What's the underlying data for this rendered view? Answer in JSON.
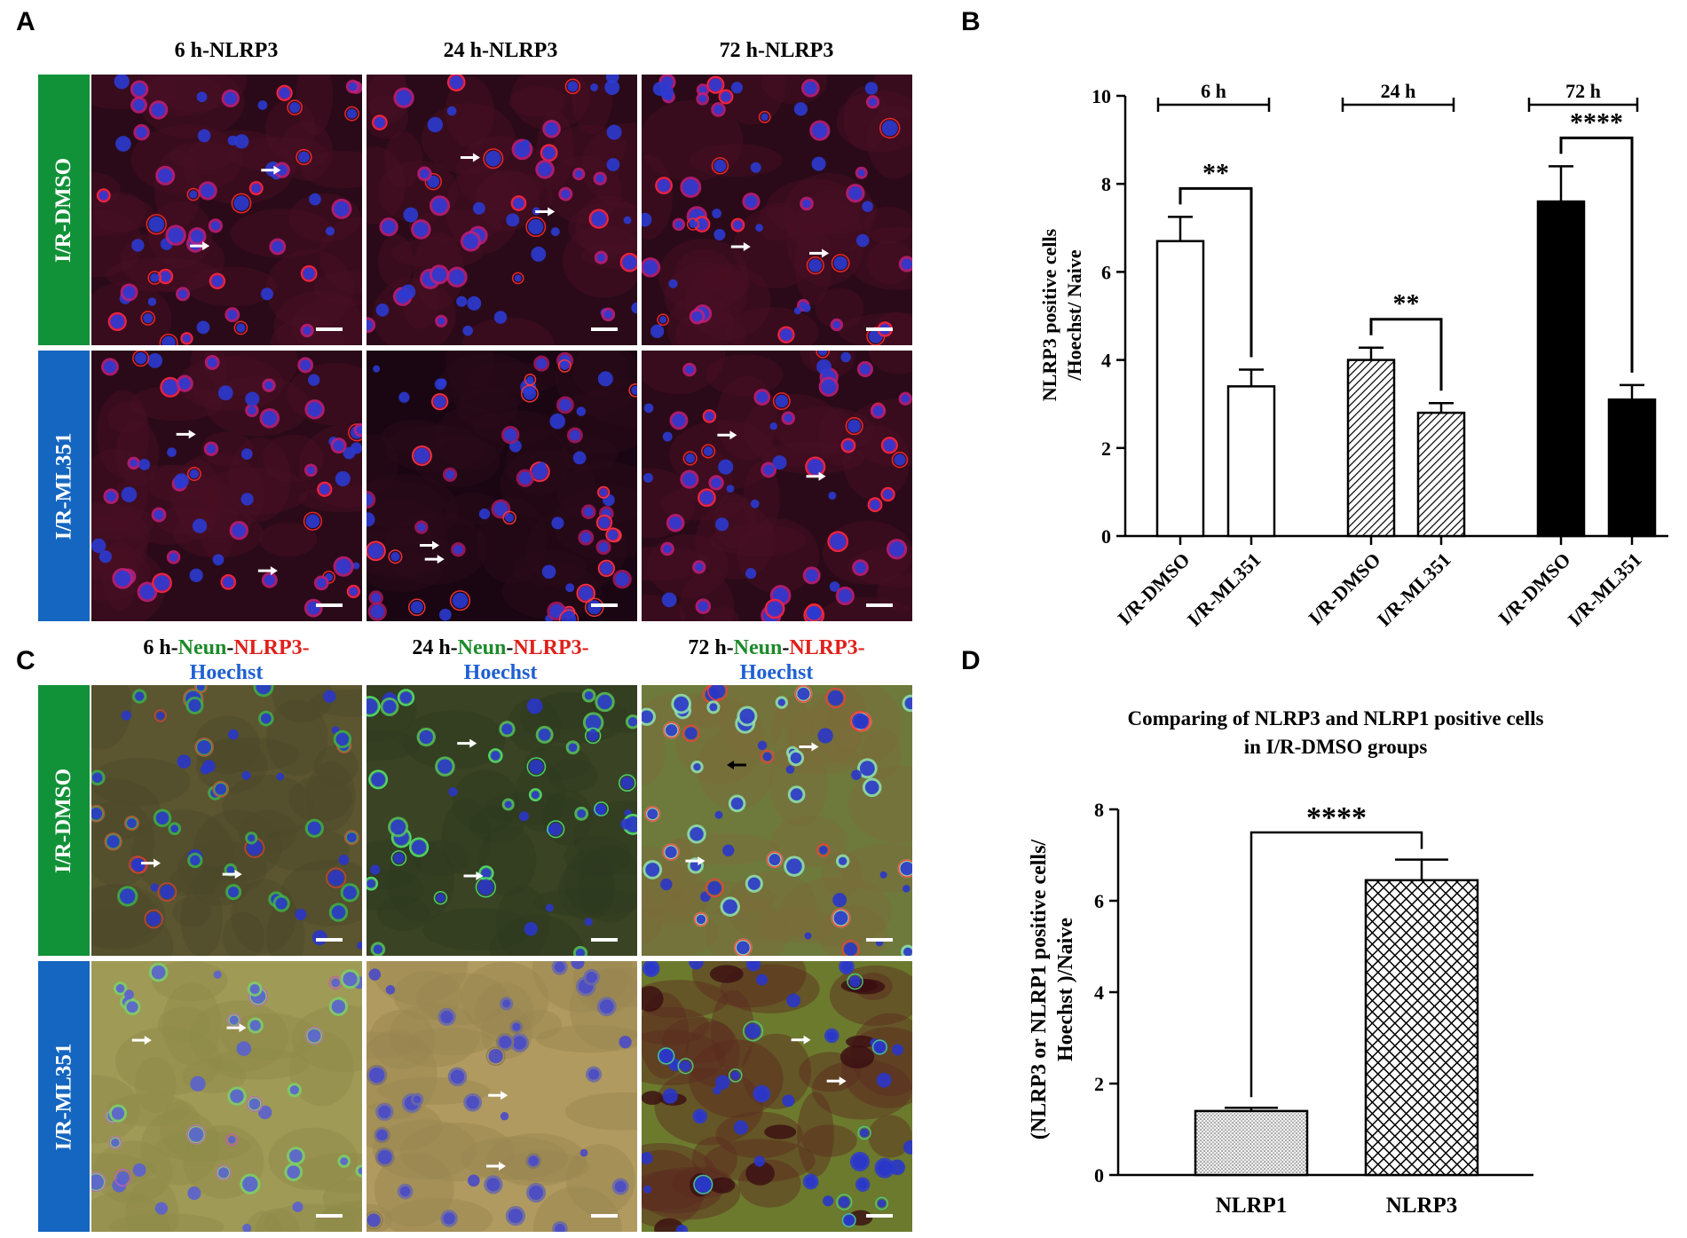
{
  "panels": {
    "A": "A",
    "B": "B",
    "C": "C",
    "D": "D"
  },
  "panel_a": {
    "columns": [
      "6 h-NLRP3",
      "24 h-NLRP3",
      "72 h-NLRP3"
    ],
    "rows": [
      "I/R-DMSO",
      "I/R-ML351"
    ]
  },
  "panel_c": {
    "columns": [
      {
        "time": "6 h-",
        "neun": "Neun",
        "dash": "-",
        "nlrp3": "NLRP3-",
        "hoechst": "Hoechst"
      },
      {
        "time": "24 h-",
        "neun": "Neun",
        "dash": "-",
        "nlrp3": "NLRP3-",
        "hoechst": "Hoechst"
      },
      {
        "time": "72 h-",
        "neun": "Neun",
        "dash": "-",
        "nlrp3": "NLRP3-",
        "hoechst": "Hoechst"
      }
    ],
    "rows": [
      "I/R-DMSO",
      "I/R-ML351"
    ]
  },
  "colors": {
    "dmso_label_bg": "#119238",
    "ml351_label_bg": "#1566c0",
    "neun_text": "#1d8a2a",
    "nlrp3_text": "#e0201b",
    "hoechst_text": "#1f5fd1",
    "micro_red_bg": "#3b0d1c",
    "micro_merge_bg": "#6b6a38"
  },
  "chart_data": [
    {
      "panel": "B",
      "type": "bar",
      "ylabel": [
        "NLRP3 positive cells",
        "/Hoechst/ Naive"
      ],
      "ylim": [
        0,
        10
      ],
      "yticks": [
        "0",
        "2",
        "4",
        "6",
        "8",
        "10"
      ],
      "categories": [
        "I/R-DMSO",
        "I/R-ML351",
        "I/R-DMSO",
        "I/R-ML351",
        "I/R-DMSO",
        "I/R-ML351"
      ],
      "values": [
        6.7,
        3.4,
        4.0,
        2.8,
        7.6,
        3.1
      ],
      "errors": [
        0.55,
        0.38,
        0.28,
        0.22,
        0.8,
        0.33
      ],
      "fills": [
        "white",
        "white",
        "hatch",
        "hatch",
        "black",
        "black"
      ],
      "groups": [
        "6 h",
        "24 h",
        "72 h"
      ],
      "significance": [
        "**",
        "**",
        "****"
      ]
    },
    {
      "panel": "D",
      "type": "bar",
      "title": [
        "Comparing of NLRP3 and NLRP1 positive cells",
        "in I/R-DMSO groups"
      ],
      "ylabel": [
        "(NLRP3 or NLRP1 positive cells/",
        "Hoechst )/Naive"
      ],
      "ylim": [
        0,
        8
      ],
      "yticks": [
        "0",
        "2",
        "4",
        "6",
        "8"
      ],
      "categories": [
        "NLRP1",
        "NLRP3"
      ],
      "values": [
        1.4,
        6.45
      ],
      "errors": [
        0.07,
        0.45
      ],
      "fills": [
        "dots",
        "crosshatch"
      ],
      "significance": "****"
    }
  ]
}
